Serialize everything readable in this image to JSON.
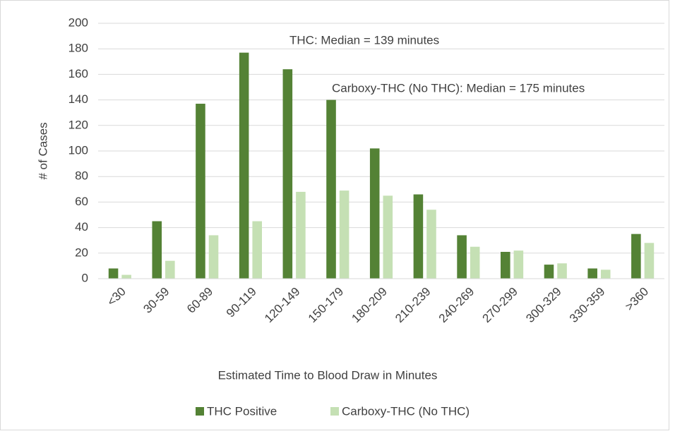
{
  "chart_data": {
    "type": "bar",
    "x_label": "Estimated Time to Blood Draw in Minutes",
    "y_label": "# of Cases",
    "categories": [
      "<30",
      "30-59",
      "60-89",
      "90-119",
      "120-149",
      "150-179",
      "180-209",
      "210-239",
      "240-269",
      "270-299",
      "300-329",
      "330-359",
      ">360"
    ],
    "series": [
      {
        "name": "THC Positive",
        "color": "#548235",
        "values": [
          8,
          45,
          137,
          177,
          164,
          140,
          102,
          66,
          34,
          21,
          11,
          8,
          35
        ]
      },
      {
        "name": "Carboxy-THC (No THC)",
        "color": "#c5e0b4",
        "values": [
          3,
          14,
          34,
          45,
          68,
          69,
          65,
          54,
          25,
          22,
          12,
          7,
          28
        ]
      }
    ],
    "annotations": [
      "THC: Median = 139 minutes",
      "Carboxy-THC (No THC): Median = 175 minutes"
    ],
    "ylim": [
      0,
      200
    ],
    "yticks": [
      0,
      20,
      40,
      60,
      80,
      100,
      120,
      140,
      160,
      180,
      200
    ],
    "grid": true,
    "legend": "bottom"
  }
}
